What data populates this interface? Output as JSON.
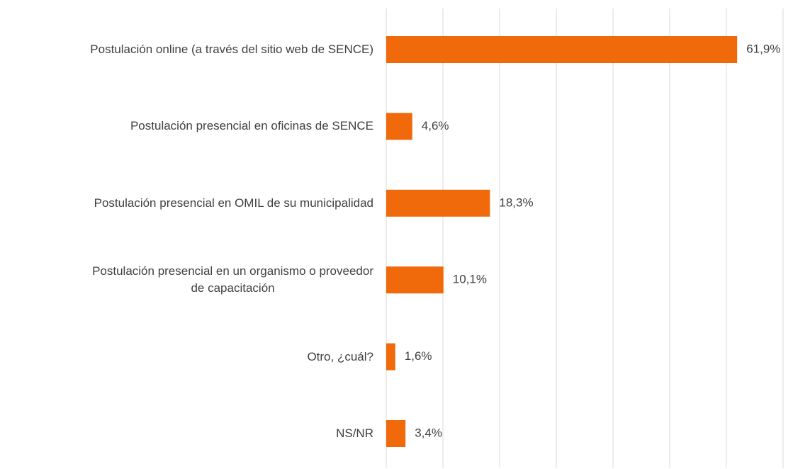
{
  "chart_data": {
    "type": "barh",
    "categories": [
      "Postulación online (a través del sitio web de SENCE)",
      "Postulación presencial en oficinas de SENCE",
      "Postulación presencial en OMIL de su municipalidad",
      "Postulación presencial en un organismo o proveedor\nde capacitación",
      "Otro, ¿cuál?",
      "NS/NR"
    ],
    "values": [
      61.9,
      4.6,
      18.3,
      10.1,
      1.6,
      3.4
    ],
    "value_labels": [
      "61,9%",
      "4,6%",
      "18,3%",
      "10,1%",
      "1,6%",
      "3,4%"
    ],
    "color": "#f06a0c",
    "xlim": [
      0,
      70
    ],
    "xticks": [
      0,
      10,
      20,
      30,
      40,
      50,
      60,
      70
    ],
    "grid": true
  }
}
